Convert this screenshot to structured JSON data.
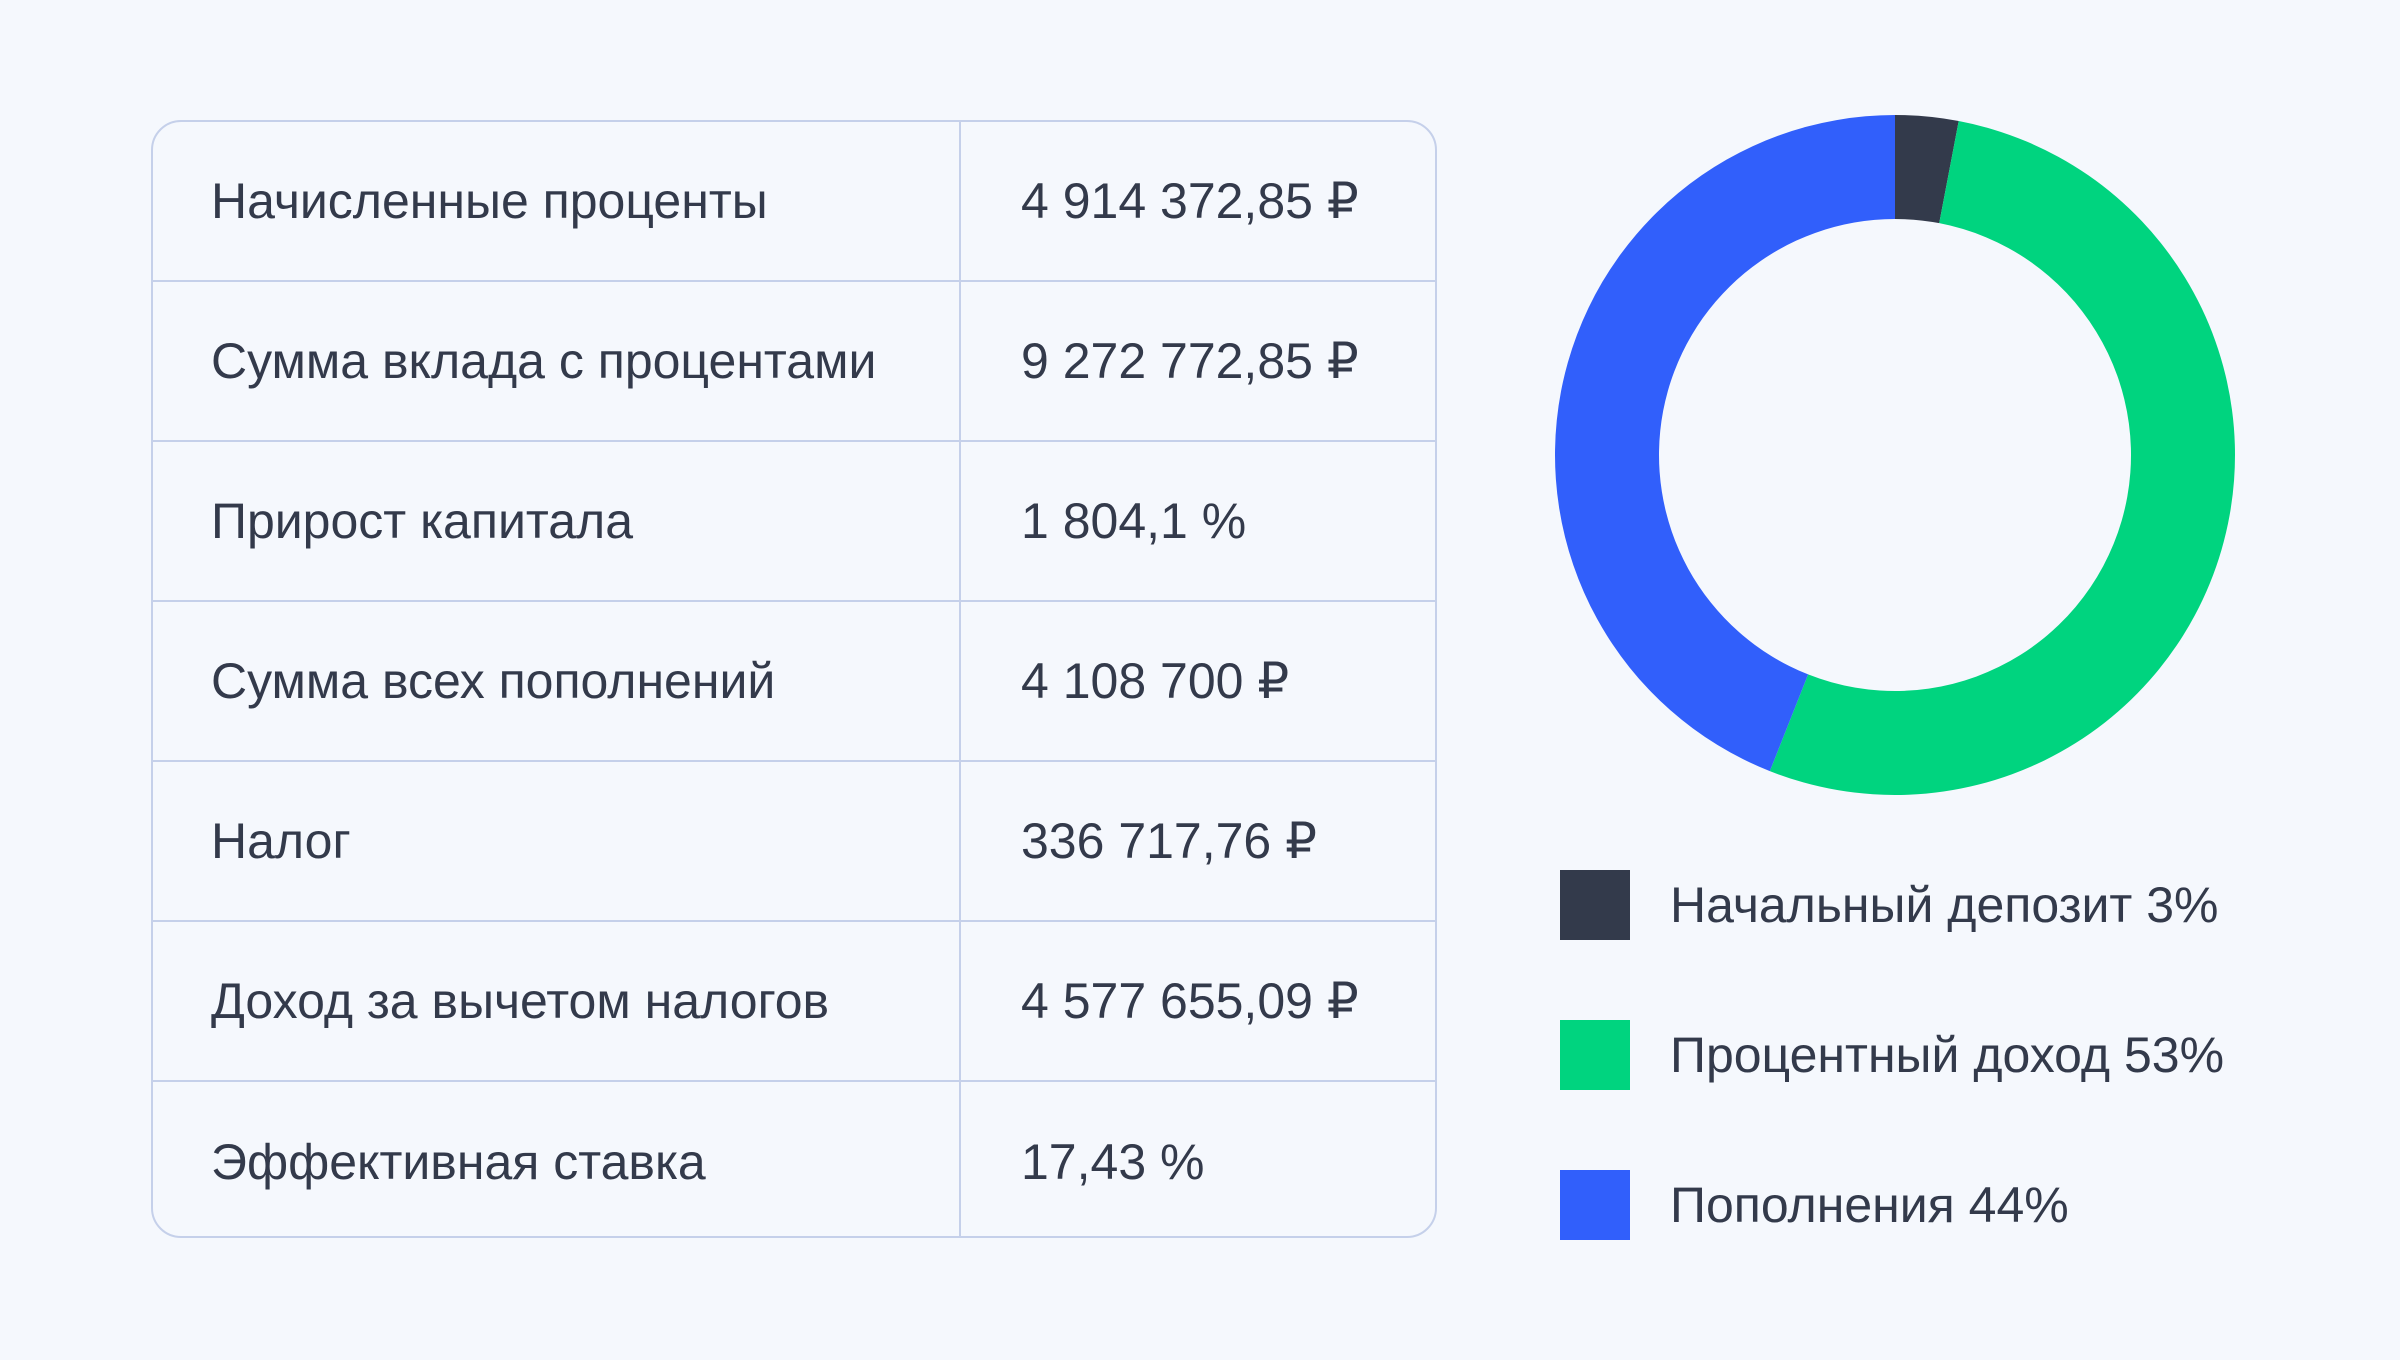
{
  "table": {
    "rows": [
      {
        "label": "Начисленные проценты",
        "value": "4 914 372,85 ₽"
      },
      {
        "label": "Сумма вклада с процентами",
        "value": "9 272 772,85 ₽"
      },
      {
        "label": "Прирост капитала",
        "value": "1 804,1 %"
      },
      {
        "label": "Сумма всех пополнений",
        "value": "4 108 700 ₽"
      },
      {
        "label": "Налог",
        "value": "336 717,76 ₽"
      },
      {
        "label": "Доход за вычетом налогов",
        "value": "4 577 655,09 ₽"
      },
      {
        "label": "Эффективная ставка",
        "value": "17,43 %"
      }
    ]
  },
  "chart_data": {
    "type": "pie",
    "donut": true,
    "categories": [
      "Начальный депозит",
      "Процентный доход",
      "Пополнения"
    ],
    "values": [
      3,
      53,
      44
    ],
    "colors": [
      "#333a4b",
      "#00d47f",
      "#315ffb"
    ],
    "legend": [
      {
        "label": "Начальный депозит 3%",
        "color": "#333a4b"
      },
      {
        "label": "Процентный доход 53%",
        "color": "#00d47f"
      },
      {
        "label": "Пополнения 44%",
        "color": "#315ffb"
      }
    ],
    "legend_position": "bottom"
  }
}
